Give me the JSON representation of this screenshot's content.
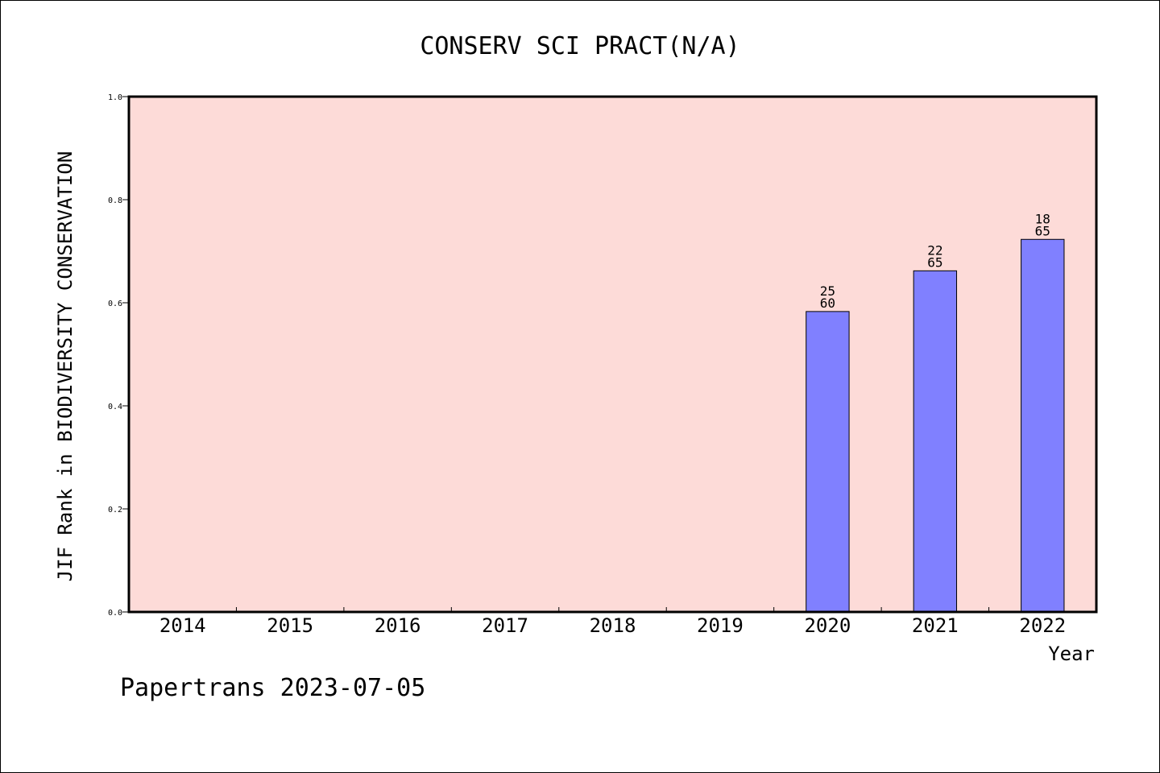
{
  "chart_data": {
    "type": "bar",
    "title": "CONSERV SCI PRACT(N/A)",
    "xlabel": "Year",
    "ylabel": "JIF Rank in BIODIVERSITY CONSERVATION",
    "categories": [
      "2014",
      "2015",
      "2016",
      "2017",
      "2018",
      "2019",
      "2020",
      "2021",
      "2022"
    ],
    "series": [
      {
        "values": [
          null,
          null,
          null,
          null,
          null,
          null,
          0.583,
          0.662,
          0.723
        ],
        "rank": [
          null,
          null,
          null,
          null,
          null,
          null,
          "25",
          "22",
          "18"
        ],
        "total": [
          null,
          null,
          null,
          null,
          null,
          null,
          "60",
          "65",
          "65"
        ]
      }
    ],
    "ylim": [
      0,
      1.0
    ],
    "yticks": [
      "0.0",
      "0.2",
      "0.4",
      "0.6",
      "0.8",
      "1.0"
    ],
    "grid": false,
    "colors": {
      "plot_background": "#fddbd8",
      "bar_fill": "#8080ff",
      "bar_stroke": "#000000",
      "axis": "#000000"
    }
  },
  "footer": "Papertrans 2023-07-05"
}
